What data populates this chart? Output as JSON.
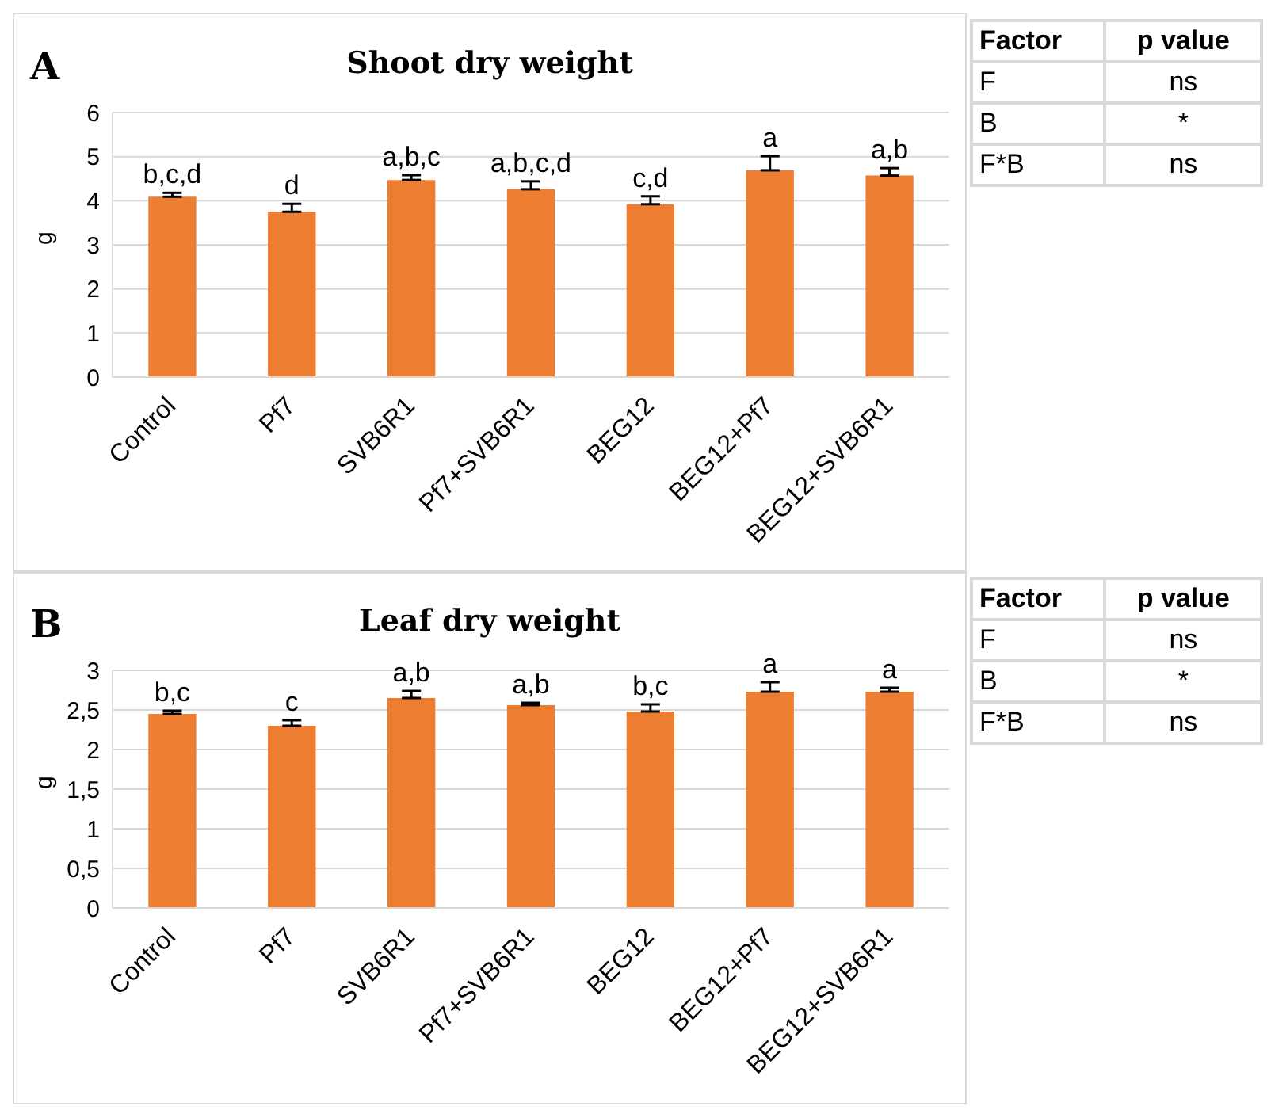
{
  "chart_data": [
    {
      "type": "bar",
      "title": "Shoot dry weight",
      "ylabel": "g",
      "annotations": [
        "A"
      ],
      "categories": [
        "Control",
        "Pf7",
        "SVB6R1",
        "Pf7+SVB6R1",
        "BEG12",
        "BEG12+Pf7",
        "BEG12+SVB6R1"
      ],
      "values": [
        4.09,
        3.75,
        4.47,
        4.26,
        3.92,
        4.69,
        4.57
      ],
      "errors": [
        [
          4.09,
          4.18
        ],
        [
          3.75,
          3.93
        ],
        [
          4.47,
          4.58
        ],
        [
          4.26,
          4.44
        ],
        [
          3.92,
          4.1
        ],
        [
          4.69,
          5.01
        ],
        [
          4.57,
          4.74
        ]
      ],
      "value_labels": [
        "b,c,d",
        "d",
        "a,b,c",
        "a,b,c,d",
        "c,d",
        "a",
        "a,b"
      ],
      "color": "#ed7d31",
      "ylim": [
        0,
        6
      ],
      "yticks": [
        0,
        1,
        2,
        3,
        4,
        5,
        6
      ],
      "grid": "y"
    },
    {
      "type": "other",
      "annotations": [
        "Factor",
        "p value",
        "F",
        "ns",
        "B",
        "*",
        "F*B",
        "ns"
      ]
    },
    {
      "type": "bar",
      "title": "Leaf dry weight",
      "ylabel": "g",
      "annotations": [
        "B"
      ],
      "categories": [
        "Control",
        "Pf7",
        "SVB6R1",
        "Pf7+SVB6R1",
        "BEG12",
        "BEG12+Pf7",
        "BEG12+SVB6R1"
      ],
      "values": [
        2.45,
        2.3,
        2.65,
        2.56,
        2.48,
        2.73,
        2.73
      ],
      "errors": [
        [
          2.45,
          2.49
        ],
        [
          2.3,
          2.37
        ],
        [
          2.65,
          2.74
        ],
        [
          2.56,
          2.59
        ],
        [
          2.48,
          2.57
        ],
        [
          2.73,
          2.85
        ],
        [
          2.73,
          2.78
        ]
      ],
      "value_labels": [
        "b,c",
        "c",
        "a,b",
        "a,b",
        "b,c",
        "a",
        "a"
      ],
      "color": "#ed7d31",
      "ylim": [
        0,
        3
      ],
      "yticks": [
        0,
        {
          "value": 0.5,
          "label": "0,5"
        },
        1,
        {
          "value": 1.5,
          "label": "1,5"
        },
        2,
        {
          "value": 2.5,
          "label": "2,5"
        },
        3
      ],
      "grid": "y"
    },
    {
      "type": "other",
      "annotations": [
        "Factor",
        "p value",
        "F",
        "ns",
        "B",
        "*",
        "F*B",
        "ns"
      ]
    }
  ]
}
